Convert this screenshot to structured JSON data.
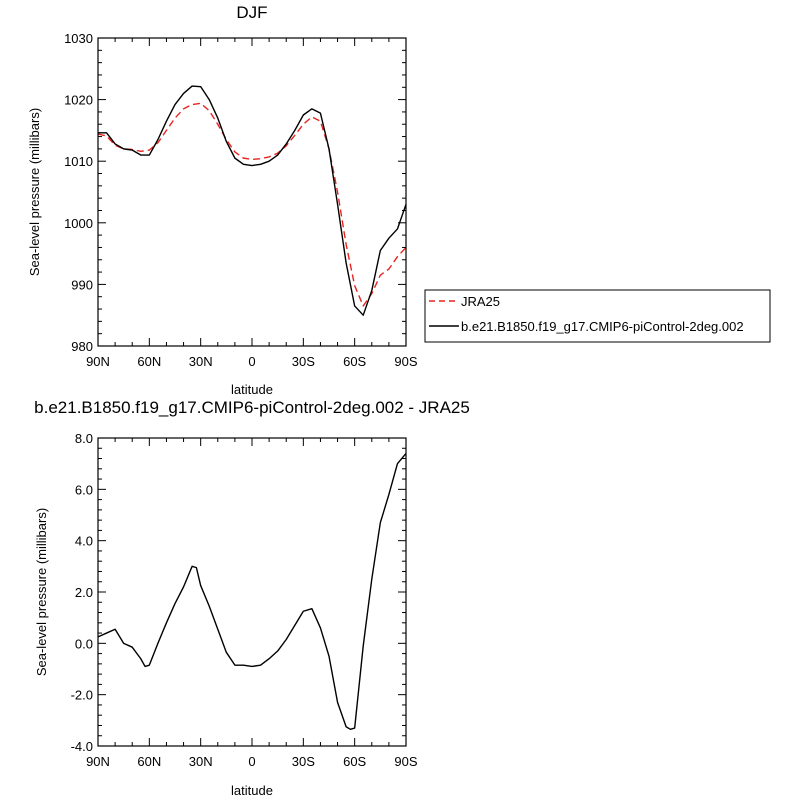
{
  "chart_data": [
    {
      "type": "line",
      "title": "DJF",
      "xlabel": "latitude",
      "ylabel": "Sea-level pressure (millibars)",
      "xlim": [
        90,
        -90
      ],
      "ylim": [
        980,
        1030
      ],
      "x_ticks": [
        90,
        60,
        30,
        0,
        -30,
        -60,
        -90
      ],
      "x_tick_labels": [
        "90N",
        "60N",
        "30N",
        "0",
        "30S",
        "60S",
        "90S"
      ],
      "y_ticks": [
        980,
        990,
        1000,
        1010,
        1020,
        1030
      ],
      "y_tick_labels": [
        "980",
        "990",
        "1000",
        "1010",
        "1020",
        "1030"
      ],
      "grid": false,
      "legend_placement": "right",
      "series": [
        {
          "name": "JRA25",
          "color": "#e8231f",
          "dash": "dashed",
          "x": [
            90,
            85,
            80,
            75,
            70,
            65,
            60,
            55,
            50,
            45,
            40,
            35,
            30,
            25,
            20,
            15,
            10,
            5,
            0,
            -5,
            -10,
            -15,
            -20,
            -25,
            -30,
            -35,
            -40,
            -45,
            -50,
            -55,
            -60,
            -65,
            -70,
            -75,
            -80,
            -85,
            -90
          ],
          "y": [
            1014.4,
            1014.1,
            1012.6,
            1012.0,
            1011.9,
            1011.6,
            1011.8,
            1013.0,
            1015.0,
            1017.0,
            1018.5,
            1019.2,
            1019.4,
            1018.2,
            1016.0,
            1013.5,
            1011.5,
            1010.5,
            1010.3,
            1010.4,
            1010.7,
            1011.3,
            1012.5,
            1014.2,
            1016.0,
            1017.2,
            1016.5,
            1012.0,
            1005.0,
            996.5,
            989.8,
            986.5,
            988.5,
            991.5,
            992.5,
            994.5,
            996.0
          ]
        },
        {
          "name": "b.e21.B1850.f19_g17.CMIP6-piControl-2deg.002",
          "color": "#000000",
          "dash": "solid",
          "x": [
            90,
            85,
            80,
            75,
            70,
            65,
            60,
            55,
            50,
            45,
            40,
            35,
            30,
            25,
            20,
            15,
            10,
            5,
            0,
            -5,
            -10,
            -15,
            -20,
            -25,
            -30,
            -35,
            -40,
            -45,
            -50,
            -55,
            -60,
            -65,
            -70,
            -75,
            -80,
            -85,
            -90
          ],
          "y": [
            1014.6,
            1014.6,
            1012.8,
            1012.0,
            1011.8,
            1011.0,
            1011.0,
            1013.5,
            1016.5,
            1019.2,
            1021.0,
            1022.2,
            1022.1,
            1020.0,
            1017.0,
            1013.2,
            1010.5,
            1009.5,
            1009.3,
            1009.5,
            1010.0,
            1011.0,
            1012.8,
            1015.0,
            1017.5,
            1018.5,
            1017.8,
            1012.0,
            1003.0,
            993.5,
            986.5,
            985.0,
            989.0,
            995.5,
            997.5,
            999.0,
            1003.0
          ]
        }
      ]
    },
    {
      "type": "line",
      "title": "b.e21.B1850.f19_g17.CMIP6-piControl-2deg.002 - JRA25",
      "xlabel": "latitude",
      "ylabel": "Sea-level pressure (millibars)",
      "xlim": [
        90,
        -90
      ],
      "ylim": [
        -4.0,
        8.0
      ],
      "x_ticks": [
        90,
        60,
        30,
        0,
        -30,
        -60,
        -90
      ],
      "x_tick_labels": [
        "90N",
        "60N",
        "30N",
        "0",
        "30S",
        "60S",
        "90S"
      ],
      "y_ticks": [
        -4,
        -2,
        0,
        2,
        4,
        6,
        8
      ],
      "y_tick_labels": [
        "-4.0",
        "-2.0",
        "0.0",
        "2.0",
        "4.0",
        "6.0",
        "8.0"
      ],
      "grid": false,
      "series": [
        {
          "color": "#000000",
          "dash": "solid",
          "x": [
            90,
            85,
            80,
            75,
            70,
            65,
            62.5,
            60,
            55,
            50,
            45,
            40,
            35,
            32.5,
            30,
            25,
            20,
            15,
            10,
            5,
            0,
            -5,
            -10,
            -15,
            -20,
            -25,
            -30,
            -35,
            -40,
            -45,
            -50,
            -55,
            -57.5,
            -60,
            -65,
            -70,
            -75,
            -80,
            -85,
            -90
          ],
          "y": [
            0.25,
            0.4,
            0.55,
            0.0,
            -0.15,
            -0.6,
            -0.9,
            -0.85,
            0.0,
            0.8,
            1.55,
            2.2,
            3.0,
            2.95,
            2.25,
            1.45,
            0.55,
            -0.35,
            -0.85,
            -0.85,
            -0.9,
            -0.85,
            -0.6,
            -0.3,
            0.15,
            0.7,
            1.25,
            1.35,
            0.6,
            -0.5,
            -2.3,
            -3.25,
            -3.35,
            -3.3,
            -0.1,
            2.5,
            4.7,
            5.8,
            7.0,
            7.4
          ]
        }
      ]
    }
  ]
}
